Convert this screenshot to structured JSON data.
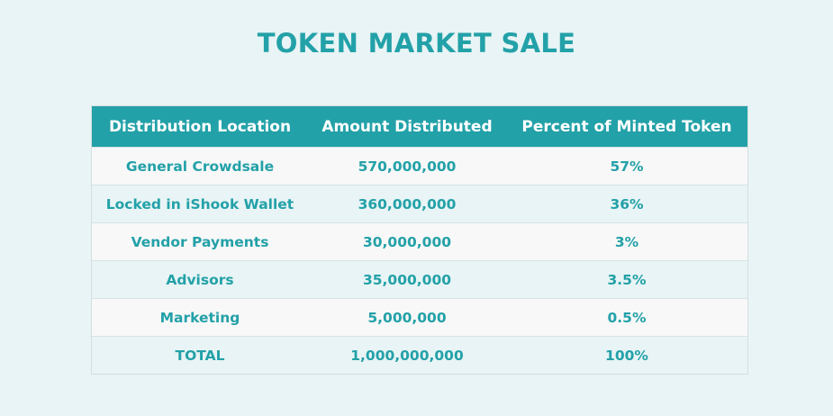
{
  "page": {
    "title": "TOKEN MARKET SALE"
  },
  "table": {
    "headers": [
      "Distribution Location",
      "Amount Distributed",
      "Percent of Minted Token"
    ],
    "rows": [
      [
        "General Crowdsale",
        "570,000,000",
        "57%"
      ],
      [
        "Locked in iShook Wallet",
        "360,000,000",
        "36%"
      ],
      [
        "Vendor Payments",
        "30,000,000",
        "3%"
      ],
      [
        "Advisors",
        "35,000,000",
        "3.5%"
      ],
      [
        "Marketing",
        "5,000,000",
        "0.5%"
      ],
      [
        "TOTAL",
        "1,000,000,000",
        "100%"
      ]
    ]
  },
  "colors": {
    "accent": "#23a1a8",
    "background": "#e8f4f5",
    "row_alt": "#f8f8f8",
    "header_text": "#ffffff"
  }
}
